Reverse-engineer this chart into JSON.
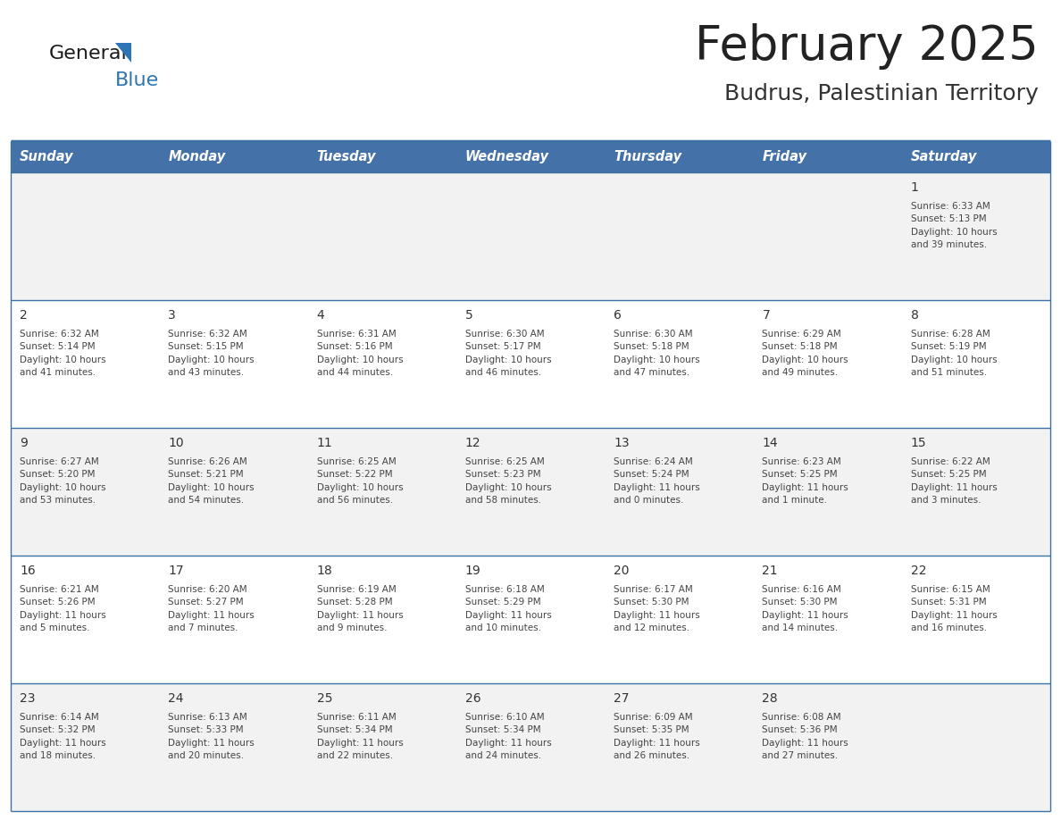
{
  "title": "February 2025",
  "subtitle": "Budrus, Palestinian Territory",
  "days_of_week": [
    "Sunday",
    "Monday",
    "Tuesday",
    "Wednesday",
    "Thursday",
    "Friday",
    "Saturday"
  ],
  "header_bg": "#4472A8",
  "header_text_color": "#FFFFFF",
  "row_bg": [
    "#F2F2F2",
    "#FFFFFF",
    "#F2F2F2",
    "#FFFFFF",
    "#F2F2F2"
  ],
  "border_color": "#3F72A4",
  "day_number_color": "#333333",
  "info_text_color": "#444444",
  "title_color": "#222222",
  "subtitle_color": "#333333",
  "logo_general_color": "#1a1a1a",
  "logo_blue_color": "#2E75B6",
  "calendar_data": [
    {
      "day": 1,
      "col": 6,
      "row": 0,
      "sunrise": "6:33 AM",
      "sunset": "5:13 PM",
      "daylight_hours": 10,
      "daylight_minutes": 39
    },
    {
      "day": 2,
      "col": 0,
      "row": 1,
      "sunrise": "6:32 AM",
      "sunset": "5:14 PM",
      "daylight_hours": 10,
      "daylight_minutes": 41
    },
    {
      "day": 3,
      "col": 1,
      "row": 1,
      "sunrise": "6:32 AM",
      "sunset": "5:15 PM",
      "daylight_hours": 10,
      "daylight_minutes": 43
    },
    {
      "day": 4,
      "col": 2,
      "row": 1,
      "sunrise": "6:31 AM",
      "sunset": "5:16 PM",
      "daylight_hours": 10,
      "daylight_minutes": 44
    },
    {
      "day": 5,
      "col": 3,
      "row": 1,
      "sunrise": "6:30 AM",
      "sunset": "5:17 PM",
      "daylight_hours": 10,
      "daylight_minutes": 46
    },
    {
      "day": 6,
      "col": 4,
      "row": 1,
      "sunrise": "6:30 AM",
      "sunset": "5:18 PM",
      "daylight_hours": 10,
      "daylight_minutes": 47
    },
    {
      "day": 7,
      "col": 5,
      "row": 1,
      "sunrise": "6:29 AM",
      "sunset": "5:18 PM",
      "daylight_hours": 10,
      "daylight_minutes": 49
    },
    {
      "day": 8,
      "col": 6,
      "row": 1,
      "sunrise": "6:28 AM",
      "sunset": "5:19 PM",
      "daylight_hours": 10,
      "daylight_minutes": 51
    },
    {
      "day": 9,
      "col": 0,
      "row": 2,
      "sunrise": "6:27 AM",
      "sunset": "5:20 PM",
      "daylight_hours": 10,
      "daylight_minutes": 53
    },
    {
      "day": 10,
      "col": 1,
      "row": 2,
      "sunrise": "6:26 AM",
      "sunset": "5:21 PM",
      "daylight_hours": 10,
      "daylight_minutes": 54
    },
    {
      "day": 11,
      "col": 2,
      "row": 2,
      "sunrise": "6:25 AM",
      "sunset": "5:22 PM",
      "daylight_hours": 10,
      "daylight_minutes": 56
    },
    {
      "day": 12,
      "col": 3,
      "row": 2,
      "sunrise": "6:25 AM",
      "sunset": "5:23 PM",
      "daylight_hours": 10,
      "daylight_minutes": 58
    },
    {
      "day": 13,
      "col": 4,
      "row": 2,
      "sunrise": "6:24 AM",
      "sunset": "5:24 PM",
      "daylight_hours": 11,
      "daylight_minutes": 0
    },
    {
      "day": 14,
      "col": 5,
      "row": 2,
      "sunrise": "6:23 AM",
      "sunset": "5:25 PM",
      "daylight_hours": 11,
      "daylight_minutes": 1
    },
    {
      "day": 15,
      "col": 6,
      "row": 2,
      "sunrise": "6:22 AM",
      "sunset": "5:25 PM",
      "daylight_hours": 11,
      "daylight_minutes": 3
    },
    {
      "day": 16,
      "col": 0,
      "row": 3,
      "sunrise": "6:21 AM",
      "sunset": "5:26 PM",
      "daylight_hours": 11,
      "daylight_minutes": 5
    },
    {
      "day": 17,
      "col": 1,
      "row": 3,
      "sunrise": "6:20 AM",
      "sunset": "5:27 PM",
      "daylight_hours": 11,
      "daylight_minutes": 7
    },
    {
      "day": 18,
      "col": 2,
      "row": 3,
      "sunrise": "6:19 AM",
      "sunset": "5:28 PM",
      "daylight_hours": 11,
      "daylight_minutes": 9
    },
    {
      "day": 19,
      "col": 3,
      "row": 3,
      "sunrise": "6:18 AM",
      "sunset": "5:29 PM",
      "daylight_hours": 11,
      "daylight_minutes": 10
    },
    {
      "day": 20,
      "col": 4,
      "row": 3,
      "sunrise": "6:17 AM",
      "sunset": "5:30 PM",
      "daylight_hours": 11,
      "daylight_minutes": 12
    },
    {
      "day": 21,
      "col": 5,
      "row": 3,
      "sunrise": "6:16 AM",
      "sunset": "5:30 PM",
      "daylight_hours": 11,
      "daylight_minutes": 14
    },
    {
      "day": 22,
      "col": 6,
      "row": 3,
      "sunrise": "6:15 AM",
      "sunset": "5:31 PM",
      "daylight_hours": 11,
      "daylight_minutes": 16
    },
    {
      "day": 23,
      "col": 0,
      "row": 4,
      "sunrise": "6:14 AM",
      "sunset": "5:32 PM",
      "daylight_hours": 11,
      "daylight_minutes": 18
    },
    {
      "day": 24,
      "col": 1,
      "row": 4,
      "sunrise": "6:13 AM",
      "sunset": "5:33 PM",
      "daylight_hours": 11,
      "daylight_minutes": 20
    },
    {
      "day": 25,
      "col": 2,
      "row": 4,
      "sunrise": "6:11 AM",
      "sunset": "5:34 PM",
      "daylight_hours": 11,
      "daylight_minutes": 22
    },
    {
      "day": 26,
      "col": 3,
      "row": 4,
      "sunrise": "6:10 AM",
      "sunset": "5:34 PM",
      "daylight_hours": 11,
      "daylight_minutes": 24
    },
    {
      "day": 27,
      "col": 4,
      "row": 4,
      "sunrise": "6:09 AM",
      "sunset": "5:35 PM",
      "daylight_hours": 11,
      "daylight_minutes": 26
    },
    {
      "day": 28,
      "col": 5,
      "row": 4,
      "sunrise": "6:08 AM",
      "sunset": "5:36 PM",
      "daylight_hours": 11,
      "daylight_minutes": 27
    }
  ]
}
